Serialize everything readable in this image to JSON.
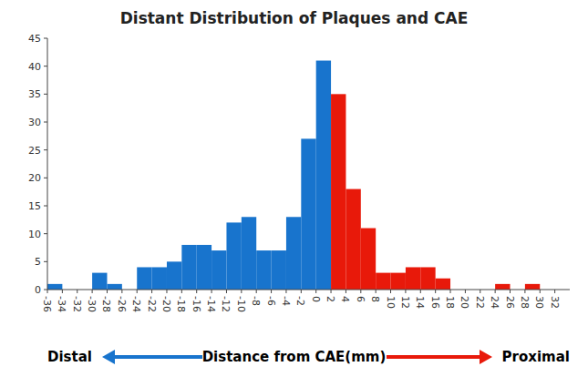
{
  "chart_data": {
    "type": "histogram",
    "title": "Distant Distribution of Plaques and CAE",
    "x_label": "Distance from CAE(mm)",
    "annotations": [
      "Distal",
      "Proximal"
    ],
    "series": [
      {
        "color": "#1874CD",
        "bins": [
          -36,
          -34,
          -32,
          -30,
          -28,
          -26,
          -24,
          -22,
          -20,
          -18,
          -16,
          -14,
          -12,
          -10,
          -8,
          -6,
          -4,
          -2,
          0,
          2
        ],
        "values": [
          1,
          0,
          0,
          3,
          1,
          0,
          4,
          4,
          5,
          8,
          8,
          7,
          12,
          13,
          7,
          7,
          13,
          27,
          41
        ]
      },
      {
        "color": "#E8190A",
        "bins": [
          2,
          4,
          6,
          8,
          10,
          12,
          14,
          16,
          18,
          20,
          22,
          24,
          26,
          28,
          30,
          32,
          34
        ],
        "values": [
          35,
          18,
          11,
          3,
          3,
          4,
          4,
          2,
          0,
          0,
          0,
          1,
          0,
          1,
          0,
          0
        ]
      }
    ],
    "xlim": [
      -36,
      34
    ],
    "xticks": [
      -36,
      -34,
      -32,
      -30,
      -28,
      -26,
      -24,
      -22,
      -20,
      -18,
      -16,
      -14,
      -12,
      -10,
      -8,
      -6,
      -4,
      -2,
      0,
      2,
      4,
      6,
      8,
      10,
      12,
      14,
      16,
      18,
      20,
      22,
      24,
      26,
      28,
      30,
      32
    ],
    "ylim": [
      0,
      45
    ],
    "yticks": [
      0,
      5,
      10,
      15,
      20,
      25,
      30,
      35,
      40,
      45
    ],
    "grid": false
  }
}
